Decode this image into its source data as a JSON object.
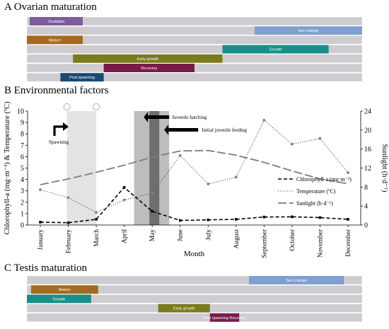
{
  "sections": {
    "a_title": "A Ovarian maturation",
    "b_title": "B Environmental factors",
    "c_title": "C Testis maturation"
  },
  "colors": {
    "row_bg": "#cdcdd1",
    "ovulation": "#7e5d9c",
    "sex_change": "#7f9fcf",
    "mature": "#a36a21",
    "growth": "#1b8e8b",
    "early_growth": "#7a7a1f",
    "recovery": "#7a1a4b",
    "post_spawning": "#1a4a72",
    "hatching_band": "#bdbdbd",
    "feeding_band": "#6e6e6e",
    "spawning_band": "#e3e3e3"
  },
  "ovarian_rows": [
    {
      "label": "Ovulation",
      "start": 0.1,
      "end": 2.0,
      "color": "#7e5d9c"
    },
    {
      "label": "Sex change",
      "start": 8.15,
      "end": 12.0,
      "color": "#7f9fcf"
    },
    {
      "label": "Mature",
      "start": 0.0,
      "end": 2.0,
      "color": "#a36a21"
    },
    {
      "label": "Growth",
      "start": 7.0,
      "end": 10.8,
      "color": "#1b8e8b"
    },
    {
      "label": "Early growth",
      "start": 1.65,
      "end": 7.0,
      "color": "#7a7a1f"
    },
    {
      "label": "Recovery",
      "start": 2.75,
      "end": 6.0,
      "color": "#7a1a4b"
    },
    {
      "label": "Post spawning",
      "start": 1.2,
      "end": 2.75,
      "color": "#1a4a72"
    }
  ],
  "testis_rows": [
    {
      "label": "Sex change",
      "start": 7.95,
      "end": 11.35,
      "color": "#7f9fcf"
    },
    {
      "label": "Mature",
      "start": 0.15,
      "end": 2.55,
      "color": "#a36a21"
    },
    {
      "label": "Growth",
      "start": 0.0,
      "end": 2.3,
      "color": "#1b8e8b"
    },
    {
      "label": "Early growth",
      "start": 4.7,
      "end": 6.55,
      "color": "#7a7a1f"
    },
    {
      "label": "Post spawning Recovery",
      "start": 6.55,
      "end": 7.6,
      "color": "#7a1a4b"
    }
  ],
  "chart_data": {
    "type": "line",
    "xlabel": "Month",
    "ylabel_left": "Chlorophyll-a (mg·m⁻³) & Temperature (ºC)",
    "ylabel_right": "Sunlight (h·d⁻¹)",
    "categories": [
      "January",
      "February",
      "March",
      "April",
      "May",
      "June",
      "July",
      "August",
      "September",
      "October",
      "November",
      "December"
    ],
    "ylim_left": [
      0,
      10
    ],
    "ylim_right": [
      0,
      24
    ],
    "yticks_left": [
      "0",
      "1",
      "2",
      "3",
      "4",
      "5",
      "6",
      "7",
      "8",
      "9",
      "10"
    ],
    "yticks_right": [
      "0",
      "4",
      "8",
      "12",
      "16",
      "20",
      "24"
    ],
    "series": [
      {
        "name": "Chlorophyll-a (mg·m⁻³)",
        "axis": "left",
        "style": "dashed-bold",
        "values": [
          0.25,
          0.2,
          0.5,
          3.3,
          1.2,
          0.4,
          0.45,
          0.5,
          0.7,
          0.72,
          0.65,
          0.5
        ]
      },
      {
        "name": "Temperature (ºC)",
        "axis": "left",
        "style": "dotted",
        "values": [
          3.1,
          2.4,
          1.1,
          2.2,
          2.8,
          6.1,
          3.6,
          4.2,
          9.2,
          7.1,
          7.6,
          4.6
        ]
      },
      {
        "name": "Sunlight (h·d⁻¹)",
        "axis": "right",
        "style": "long-dash",
        "values": [
          8.5,
          9.7,
          11.1,
          12.6,
          14.3,
          15.6,
          15.7,
          14.7,
          13.2,
          11.4,
          9.7,
          8.7
        ]
      }
    ],
    "annotations": {
      "spawning": "Spawning",
      "juvenile_hatching": "Juvenile hatching",
      "initial_feeding": "Initial juvenile feeding"
    },
    "legend_position": "right",
    "grid": false
  }
}
